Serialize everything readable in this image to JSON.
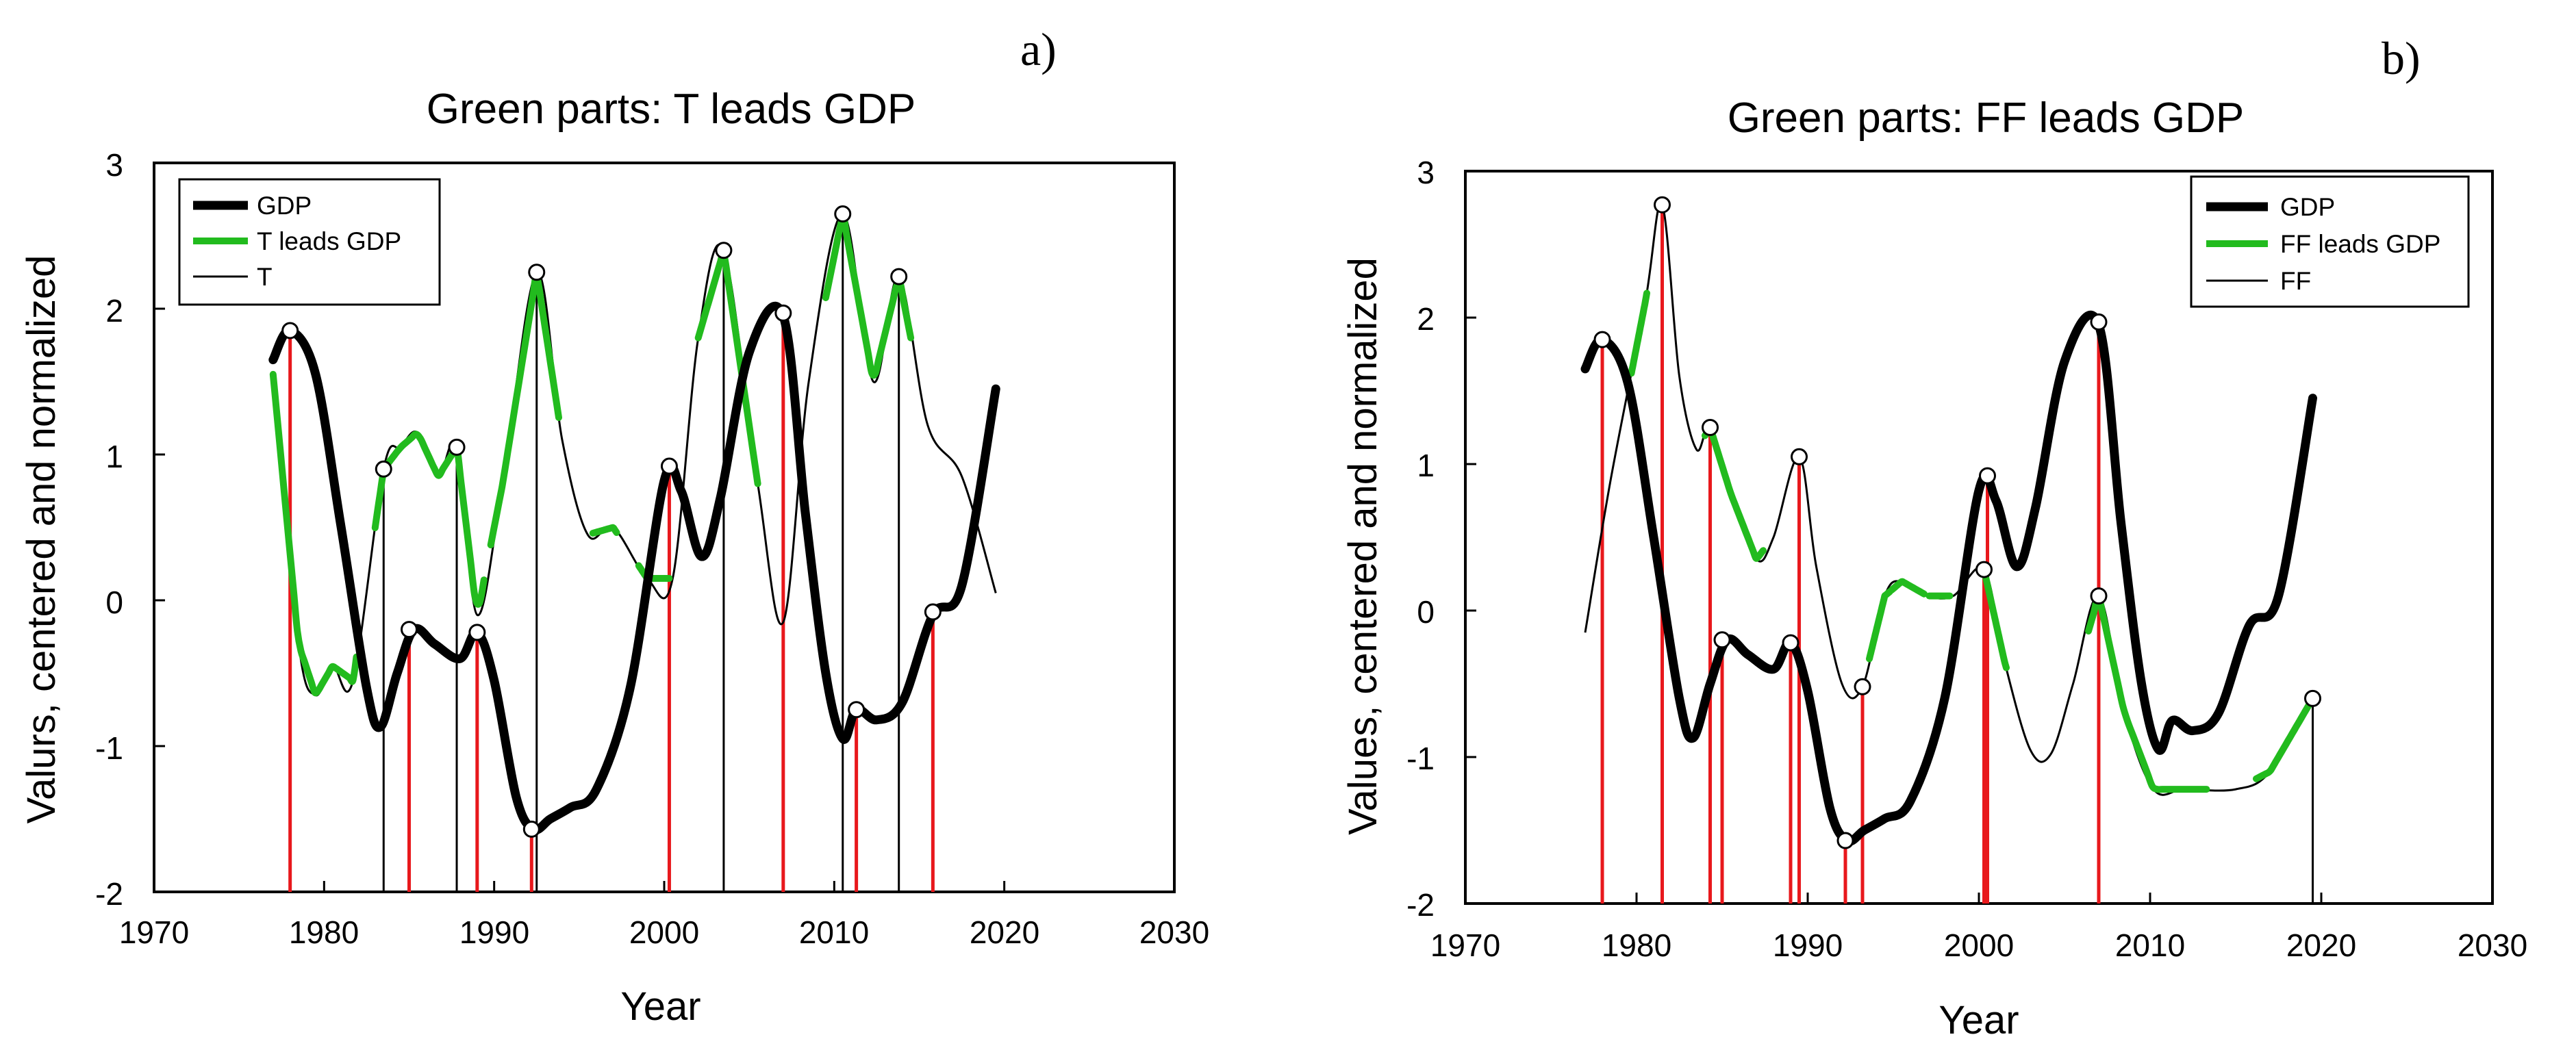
{
  "colors": {
    "gdp": "#000000",
    "lead": "#22bb1e",
    "secondary": "#000000",
    "marker": "#e8181c"
  },
  "chart_data": [
    {
      "panel": "a)",
      "type": "line",
      "title": "Green parts: T leads GDP",
      "xlabel": "Year",
      "ylabel": "Valurs, centered and normalized",
      "xlim": [
        1970,
        2030
      ],
      "ylim": [
        -2,
        3
      ],
      "xticks": [
        "1970",
        "1980",
        "1990",
        "2000",
        "2010",
        "2020",
        "2030"
      ],
      "yticks": [
        "-2",
        "-1",
        "0",
        "1",
        "2",
        "3"
      ],
      "legend": {
        "position": "top-left",
        "entries": [
          "GDP",
          "T leads GDP",
          "T"
        ]
      },
      "series": [
        {
          "name": "GDP",
          "style": "thick-black",
          "x": [
            1977,
            1978,
            1979.5,
            1981,
            1982.5,
            1983.3,
            1984.3,
            1985.3,
            1986.5,
            1988,
            1989,
            1990,
            1991.3,
            1992.3,
            1993.3,
            1994.5,
            1996,
            1998,
            2000,
            2001,
            2002.2,
            2003.3,
            2005,
            2007,
            2008.3,
            2009.5,
            2010.5,
            2011.3,
            2012.5,
            2014,
            2015.8,
            2017.5,
            2019.5
          ],
          "y": [
            1.65,
            1.85,
            1.55,
            0.5,
            -0.6,
            -0.87,
            -0.5,
            -0.2,
            -0.3,
            -0.4,
            -0.22,
            -0.55,
            -1.35,
            -1.57,
            -1.5,
            -1.42,
            -1.3,
            -0.6,
            0.82,
            0.75,
            0.3,
            0.7,
            1.7,
            1.95,
            0.6,
            -0.5,
            -0.95,
            -0.75,
            -0.82,
            -0.7,
            -0.1,
            0.1,
            1.45
          ]
        },
        {
          "name": "T",
          "style": "thin-black",
          "x": [
            1977,
            1978.5,
            1979.5,
            1980.5,
            1981.7,
            1983.5,
            1984.5,
            1985.5,
            1986.7,
            1987.8,
            1989,
            1990.5,
            1992.5,
            1994,
            1995.5,
            1997,
            1999,
            2000.5,
            2002,
            2003.5,
            2005.5,
            2007,
            2008.5,
            2010.5,
            2012.3,
            2013.8,
            2015.5,
            2017.5,
            2019.5
          ],
          "y": [
            1.55,
            -0.3,
            -0.65,
            -0.45,
            -0.55,
            0.9,
            1.05,
            1.15,
            0.85,
            1.05,
            -0.1,
            0.8,
            2.25,
            1.1,
            0.45,
            0.5,
            0.15,
            0.15,
            1.8,
            2.4,
            0.8,
            -0.15,
            1.5,
            2.65,
            1.5,
            2.22,
            1.2,
            0.85,
            0.05
          ]
        },
        {
          "name": "T leads GDP",
          "style": "green-segments",
          "over": "T",
          "x_ranges": [
            [
              1977,
              1981.9
            ],
            [
              1983,
              1989.4
            ],
            [
              1989.8,
              1993.8
            ],
            [
              1995.8,
              1997.2
            ],
            [
              1998.5,
              2000.3
            ],
            [
              2002,
              2005.5
            ],
            [
              2009.5,
              2014.5
            ]
          ]
        }
      ],
      "markers": {
        "red": [
          {
            "x": 1978,
            "y": 1.85
          },
          {
            "x": 1985,
            "y": -0.2
          },
          {
            "x": 1989,
            "y": -0.22
          },
          {
            "x": 1992.2,
            "y": -1.57
          },
          {
            "x": 2000.3,
            "y": 0.92
          },
          {
            "x": 2007,
            "y": 1.97
          },
          {
            "x": 2011.3,
            "y": -0.75
          },
          {
            "x": 2015.8,
            "y": -0.08
          }
        ],
        "black": [
          {
            "x": 1983.5,
            "y": 0.9
          },
          {
            "x": 1987.8,
            "y": 1.05
          },
          {
            "x": 1992.5,
            "y": 2.25
          },
          {
            "x": 2003.5,
            "y": 2.4
          },
          {
            "x": 2010.5,
            "y": 2.65
          },
          {
            "x": 2013.8,
            "y": 2.22
          }
        ]
      }
    },
    {
      "panel": "b)",
      "type": "line",
      "title": "Green parts: FF leads GDP",
      "xlabel": "Year",
      "ylabel": "Values, centered and normalized",
      "xlim": [
        1970,
        2030
      ],
      "ylim": [
        -2,
        3
      ],
      "xticks": [
        "1970",
        "1980",
        "1990",
        "2000",
        "2010",
        "2020",
        "2030"
      ],
      "yticks": [
        "-2",
        "-1",
        "0",
        "1",
        "2",
        "3"
      ],
      "legend": {
        "position": "top-right",
        "entries": [
          "GDP",
          "FF leads GDP",
          "FF"
        ]
      },
      "series": [
        {
          "name": "GDP",
          "style": "thick-black",
          "x": [
            1977,
            1978,
            1979.5,
            1981,
            1982.5,
            1983.3,
            1984.3,
            1985.3,
            1986.5,
            1988,
            1989,
            1990,
            1991.3,
            1992.3,
            1993.3,
            1994.5,
            1996,
            1998,
            2000,
            2001,
            2002.2,
            2003.3,
            2005,
            2007,
            2008.3,
            2009.5,
            2010.5,
            2011.3,
            2012.5,
            2014,
            2015.8,
            2017.5,
            2019.5
          ],
          "y": [
            1.65,
            1.85,
            1.55,
            0.5,
            -0.6,
            -0.87,
            -0.5,
            -0.2,
            -0.3,
            -0.4,
            -0.22,
            -0.55,
            -1.35,
            -1.57,
            -1.5,
            -1.42,
            -1.3,
            -0.6,
            0.82,
            0.75,
            0.3,
            0.7,
            1.7,
            1.95,
            0.6,
            -0.5,
            -0.95,
            -0.75,
            -0.82,
            -0.7,
            -0.1,
            0.1,
            1.45
          ]
        },
        {
          "name": "FF",
          "style": "thin-black",
          "x": [
            1977,
            1978.5,
            1980.5,
            1981.5,
            1982.5,
            1983.5,
            1984.3,
            1985.5,
            1987,
            1988,
            1989.5,
            1990.5,
            1992,
            1993.2,
            1994.5,
            1995.5,
            1997,
            1998.5,
            2000.3,
            2001.5,
            2003,
            2004.2,
            2005.5,
            2007,
            2008.5,
            2010.2,
            2012,
            2015,
            2017,
            2019.5
          ],
          "y": [
            -0.15,
            0.9,
            2.1,
            2.77,
            1.6,
            1.1,
            1.25,
            0.8,
            0.35,
            0.5,
            1.05,
            0.3,
            -0.5,
            -0.52,
            0.1,
            0.2,
            0.1,
            0.1,
            0.28,
            -0.35,
            -0.95,
            -0.98,
            -0.5,
            0.1,
            -0.7,
            -1.22,
            -1.22,
            -1.22,
            -1.1,
            -0.6
          ]
        },
        {
          "name": "FF leads GDP",
          "style": "green-segments",
          "over": "FF",
          "x_ranges": [
            [
              1979.7,
              1980.6
            ],
            [
              1984,
              1987.4
            ],
            [
              1993.6,
              1994.8
            ],
            [
              1994.9,
              1996.8
            ],
            [
              1997.1,
              1998.3
            ],
            [
              2000.1,
              2001.6
            ],
            [
              2006.4,
              2013.3
            ],
            [
              2016.2,
              2019.6
            ]
          ]
        }
      ],
      "markers": {
        "red": [
          {
            "x": 1978,
            "y": 1.85
          },
          {
            "x": 1981.5,
            "y": 2.77
          },
          {
            "x": 1984.3,
            "y": 1.25
          },
          {
            "x": 1985,
            "y": -0.2
          },
          {
            "x": 1989,
            "y": -0.22
          },
          {
            "x": 1989.5,
            "y": 1.05
          },
          {
            "x": 1992.2,
            "y": -1.57
          },
          {
            "x": 1993.2,
            "y": -0.52
          },
          {
            "x": 2000.3,
            "y": 0.28
          },
          {
            "x": 2000.5,
            "y": 0.92
          },
          {
            "x": 2007,
            "y": 0.1
          },
          {
            "x": 2007,
            "y": 1.97
          }
        ],
        "black": [
          {
            "x": 2019.5,
            "y": -0.6
          }
        ]
      }
    }
  ]
}
